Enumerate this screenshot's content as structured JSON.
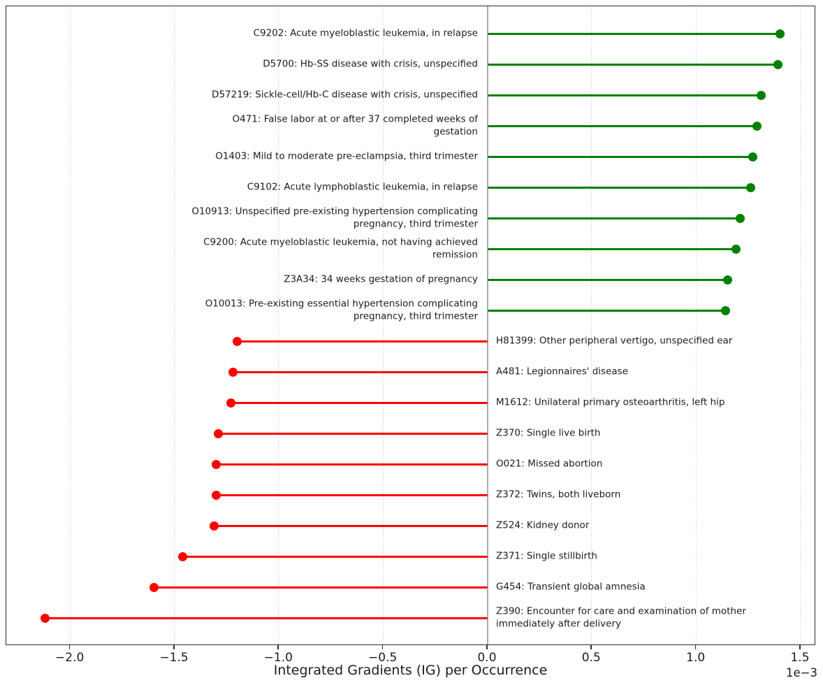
{
  "chart_data": {
    "type": "bar",
    "variant": "horizontal-lollipop-stem",
    "title": "",
    "xlabel": "Integrated Gradients (IG) per Occurrence",
    "ylabel": "",
    "offset_text": "1e−3",
    "value_units": "1e-3",
    "xticks": [
      -2.0,
      -1.5,
      -1.0,
      -0.5,
      0.0,
      0.5,
      1.0,
      1.5
    ],
    "xtick_labels": [
      "−2.0",
      "−1.5",
      "−1.0",
      "−0.5",
      "0.0",
      "0.5",
      "1.0",
      "1.5"
    ],
    "xlim": [
      -2.31,
      1.57
    ],
    "grid": "vertical dashed gridlines at each tick, solid gray line at zero",
    "legend": "none",
    "colors": {
      "positive": "#008000",
      "negative": "#ff0000",
      "zero_line": "#ababab",
      "gridline": "#dedede",
      "text": "#1c1c1c",
      "spine": "#2b2b2b"
    },
    "items": [
      {
        "label": "C9202: Acute myeloblastic leukemia, in relapse",
        "value": 1.4
      },
      {
        "label": "D5700: Hb-SS disease with crisis, unspecified",
        "value": 1.39
      },
      {
        "label": "D57219: Sickle-cell/Hb-C disease with crisis, unspecified",
        "value": 1.31
      },
      {
        "label": "O471: False labor at or after 37 completed weeks of\ngestation",
        "value": 1.29
      },
      {
        "label": "O1403: Mild to moderate pre-eclampsia, third trimester",
        "value": 1.27
      },
      {
        "label": "C9102: Acute lymphoblastic leukemia, in relapse",
        "value": 1.26
      },
      {
        "label": "O10913: Unspecified pre-existing hypertension complicating\npregnancy, third trimester",
        "value": 1.21
      },
      {
        "label": "C9200: Acute myeloblastic leukemia, not having achieved\nremission",
        "value": 1.19
      },
      {
        "label": "Z3A34: 34 weeks gestation of pregnancy",
        "value": 1.15
      },
      {
        "label": "O10013: Pre-existing essential hypertension complicating\npregnancy, third trimester",
        "value": 1.14
      },
      {
        "label": "H81399: Other peripheral vertigo, unspecified ear",
        "value": -1.2
      },
      {
        "label": "A481: Legionnaires' disease",
        "value": -1.22
      },
      {
        "label": "M1612: Unilateral primary osteoarthritis, left hip",
        "value": -1.23
      },
      {
        "label": "Z370: Single live birth",
        "value": -1.29
      },
      {
        "label": "O021: Missed abortion",
        "value": -1.3
      },
      {
        "label": "Z372: Twins, both liveborn",
        "value": -1.3
      },
      {
        "label": "Z524: Kidney donor",
        "value": -1.31
      },
      {
        "label": "Z371: Single stillbirth",
        "value": -1.46
      },
      {
        "label": "G454: Transient global amnesia",
        "value": -1.6
      },
      {
        "label": "Z390: Encounter for care and examination of mother\nimmediately after delivery",
        "value": -2.12
      }
    ]
  }
}
